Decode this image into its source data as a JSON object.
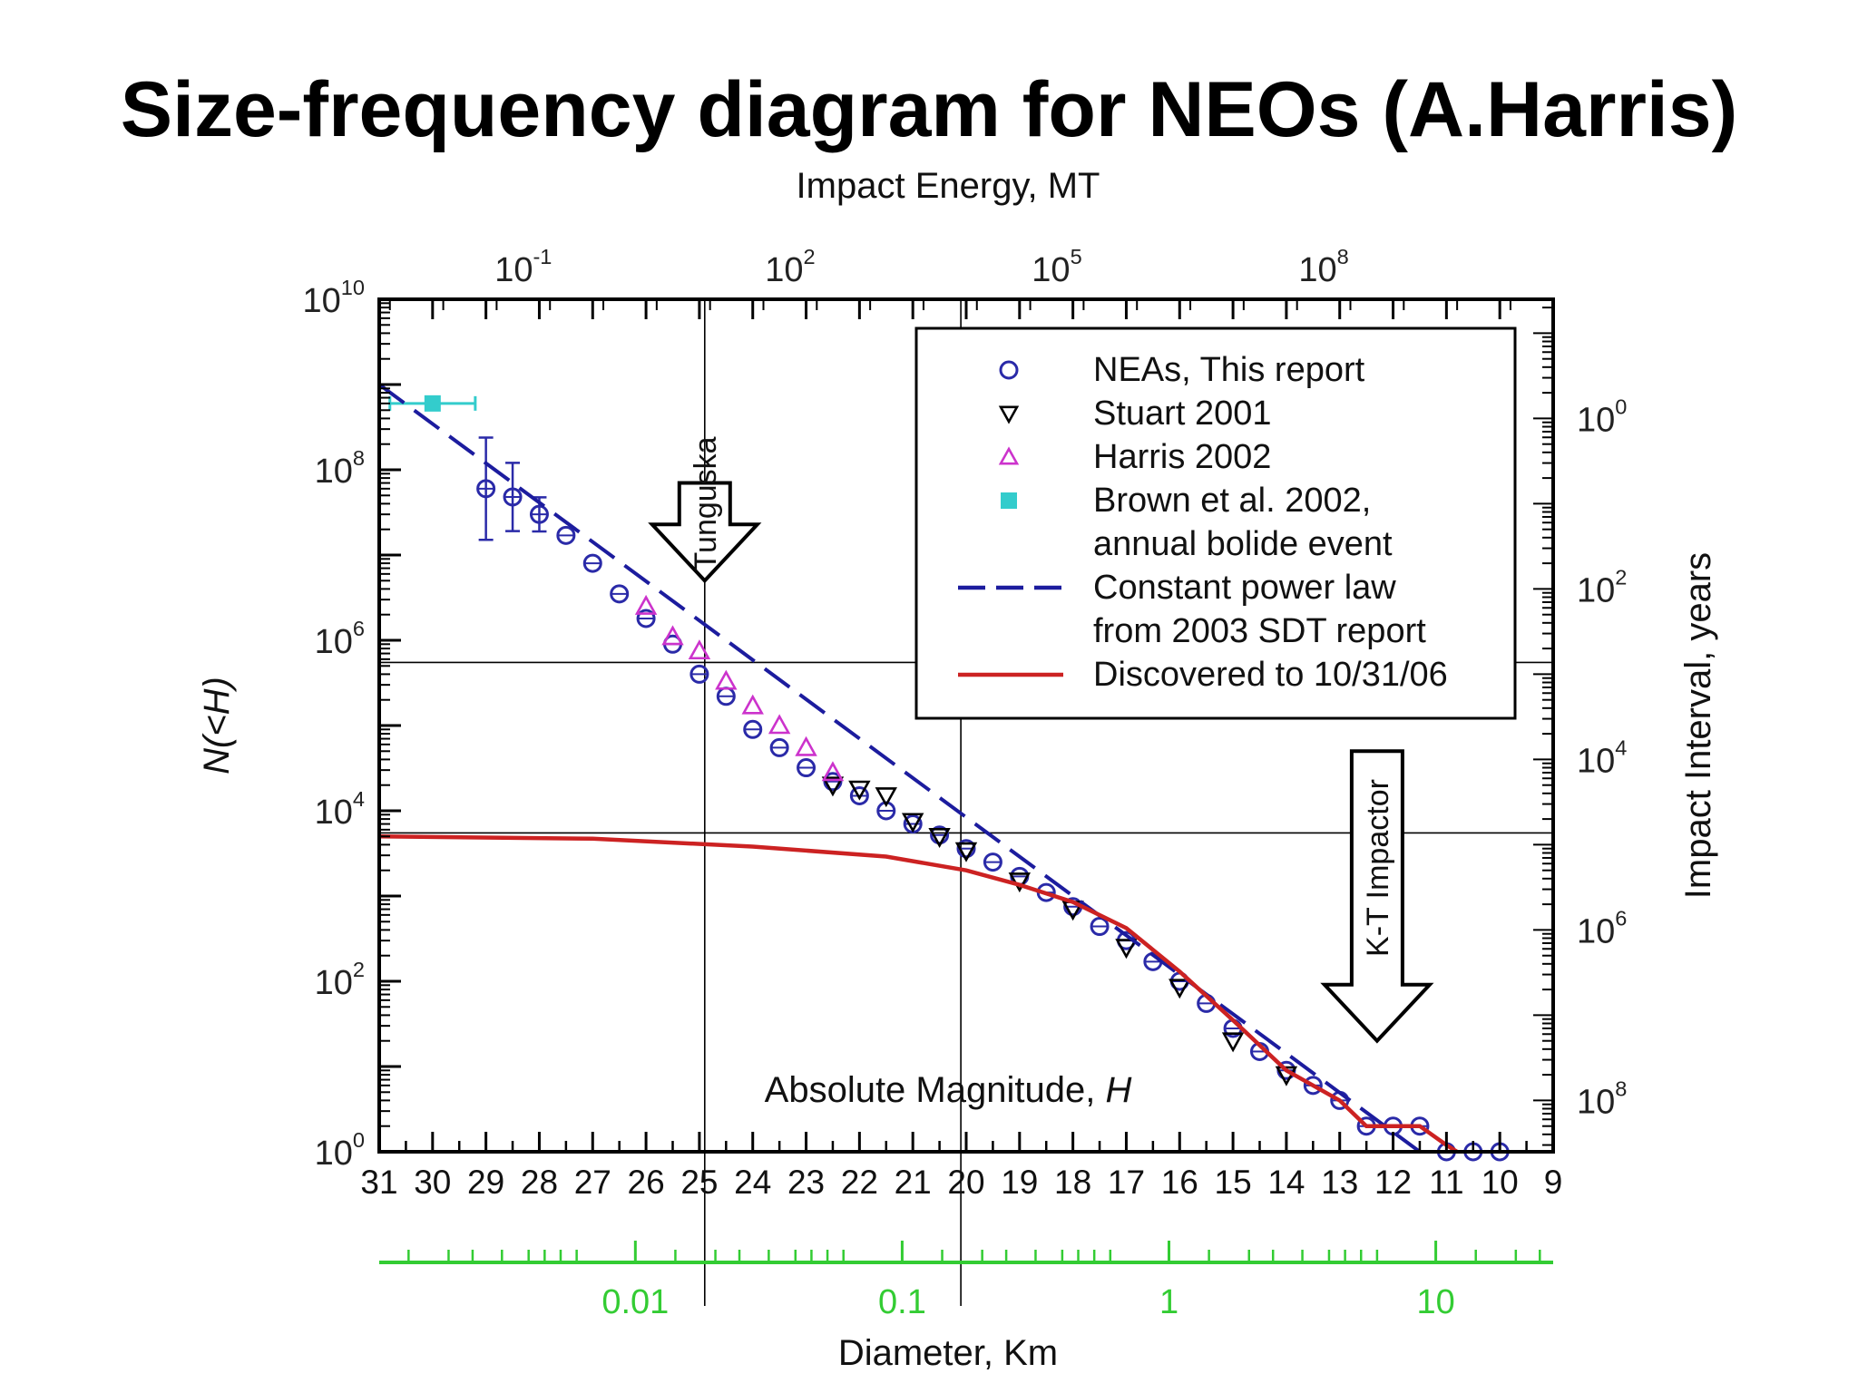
{
  "title": "Size-frequency diagram for NEOs (A.Harris)",
  "chart_data": {
    "type": "scatter",
    "x_axis": {
      "label": "Absolute Magnitude, H",
      "label_var": "H",
      "range": [
        31,
        9
      ],
      "reversed": true,
      "ticks": [
        "31",
        "30",
        "29",
        "28",
        "27",
        "26",
        "25",
        "24",
        "23",
        "22",
        "21",
        "20",
        "19",
        "18",
        "17",
        "16",
        "15",
        "14",
        "13",
        "12",
        "11",
        "10",
        "9"
      ]
    },
    "y_axis": {
      "label": "N(<H)",
      "scale": "log",
      "range": [
        1,
        10000000000
      ],
      "ticks": [
        {
          "value": 1,
          "base": "10",
          "exp": "0"
        },
        {
          "value": 100,
          "base": "10",
          "exp": "2"
        },
        {
          "value": 10000,
          "base": "10",
          "exp": "4"
        },
        {
          "value": 1000000,
          "base": "10",
          "exp": "6"
        },
        {
          "value": 100000000,
          "base": "10",
          "exp": "8"
        },
        {
          "value": 10000000000,
          "base": "10",
          "exp": "10"
        }
      ]
    },
    "top_axis": {
      "label": "Impact Energy, MT",
      "scale": "log",
      "ticks": [
        {
          "H": 28.3,
          "base": "10",
          "exp": "-1"
        },
        {
          "H": 23.3,
          "base": "10",
          "exp": "2"
        },
        {
          "H": 18.3,
          "base": "10",
          "exp": "5"
        },
        {
          "H": 13.3,
          "base": "10",
          "exp": "8"
        }
      ]
    },
    "right_axis": {
      "label": "Impact Interval, years",
      "scale": "log",
      "ticks": [
        {
          "y": 400000000,
          "base": "10",
          "exp": "0"
        },
        {
          "y": 4000000,
          "base": "10",
          "exp": "2"
        },
        {
          "y": 40000,
          "base": "10",
          "exp": "4"
        },
        {
          "y": 400,
          "base": "10",
          "exp": "6"
        },
        {
          "y": 4,
          "base": "10",
          "exp": "8"
        }
      ]
    },
    "diameter_axis": {
      "label": "Diameter, Km",
      "color": "#33cc33",
      "scale": "log",
      "ticks": [
        {
          "H": 26.2,
          "label": "0.01"
        },
        {
          "H": 21.2,
          "label": "0.1"
        },
        {
          "H": 16.2,
          "label": "1"
        },
        {
          "H": 11.2,
          "label": "10"
        }
      ]
    },
    "reference_lines": {
      "vertical_H": [
        24.9,
        20.1
      ],
      "horizontal_N": [
        550000,
        5500
      ]
    },
    "annotations": [
      {
        "text": "Tunguska",
        "H": 24.9,
        "N_top": 70000000,
        "N_bottom": 5000000
      },
      {
        "text": "K-T Impactor",
        "H": 12.3,
        "N_top": 50000,
        "N_bottom": 20
      }
    ],
    "legend": {
      "position": "top-right"
    },
    "series": [
      {
        "name": "NEAs, This report",
        "marker": "circle",
        "color": "#2a2aa8",
        "points": [
          [
            29.0,
            60000000
          ],
          [
            28.5,
            48000000
          ],
          [
            28.0,
            30000000
          ],
          [
            27.5,
            17000000
          ],
          [
            27.0,
            8000000
          ],
          [
            26.5,
            3500000
          ],
          [
            26.0,
            1800000
          ],
          [
            25.5,
            900000
          ],
          [
            25.0,
            400000
          ],
          [
            24.5,
            220000
          ],
          [
            24.0,
            90000
          ],
          [
            23.5,
            55000
          ],
          [
            23.0,
            32000
          ],
          [
            22.5,
            22000
          ],
          [
            22.0,
            15000
          ],
          [
            21.5,
            10000
          ],
          [
            21.0,
            7000
          ],
          [
            20.5,
            5200
          ],
          [
            20.0,
            3600
          ],
          [
            19.5,
            2500
          ],
          [
            19.0,
            1700
          ],
          [
            18.5,
            1100
          ],
          [
            18.0,
            750
          ],
          [
            17.5,
            440
          ],
          [
            17.0,
            300
          ],
          [
            16.5,
            170
          ],
          [
            16.0,
            100
          ],
          [
            15.5,
            55
          ],
          [
            15.0,
            28
          ],
          [
            14.5,
            15
          ],
          [
            14.0,
            9
          ],
          [
            13.5,
            6
          ],
          [
            13.0,
            4
          ],
          [
            12.5,
            2
          ],
          [
            12.0,
            2
          ],
          [
            11.5,
            2
          ],
          [
            11.0,
            1
          ],
          [
            10.5,
            1
          ],
          [
            10.0,
            1
          ]
        ],
        "err": [
          [
            29.0,
            0.6
          ],
          [
            28.5,
            0.4
          ],
          [
            28.0,
            0.2
          ]
        ]
      },
      {
        "name": "Stuart 2001",
        "marker": "triangle-down",
        "color": "#000000",
        "points": [
          [
            22.5,
            20000
          ],
          [
            22.0,
            18000
          ],
          [
            21.5,
            15000
          ],
          [
            21.0,
            7500
          ],
          [
            20.5,
            5000
          ],
          [
            20.0,
            3400
          ],
          [
            19.0,
            1500
          ],
          [
            18.0,
            700
          ],
          [
            17.0,
            250
          ],
          [
            16.0,
            85
          ],
          [
            15.0,
            20
          ],
          [
            14.0,
            8
          ]
        ]
      },
      {
        "name": "Harris 2002",
        "marker": "triangle-up",
        "color": "#cc33cc",
        "points": [
          [
            26.0,
            2500000
          ],
          [
            25.5,
            1100000
          ],
          [
            25.0,
            750000
          ],
          [
            24.5,
            330000
          ],
          [
            24.0,
            170000
          ],
          [
            23.5,
            100000
          ],
          [
            23.0,
            55000
          ],
          [
            22.5,
            28000
          ]
        ]
      },
      {
        "name": "Brown et al. 2002, annual bolide event",
        "marker": "square",
        "color": "#33cccc",
        "points": [
          [
            30.0,
            600000000
          ]
        ],
        "xerr": [
          [
            30.8,
            29.2
          ]
        ]
      },
      {
        "name": "Constant power law from 2003 SDT report",
        "line": "dashed",
        "color": "#1c1c9e",
        "points": [
          [
            31.0,
            1000000000
          ],
          [
            11.5,
            1
          ]
        ]
      },
      {
        "name": "Discovered to 10/31/06",
        "line": "solid",
        "color": "#cc2222",
        "points": [
          [
            31.0,
            5000
          ],
          [
            27.0,
            4700
          ],
          [
            24.0,
            3800
          ],
          [
            21.5,
            2900
          ],
          [
            20.0,
            2000
          ],
          [
            19.0,
            1350
          ],
          [
            18.0,
            850
          ],
          [
            17.0,
            420
          ],
          [
            16.0,
            130
          ],
          [
            15.0,
            35
          ],
          [
            14.0,
            9
          ],
          [
            13.0,
            4
          ],
          [
            12.5,
            2
          ],
          [
            12.0,
            2
          ],
          [
            11.5,
            2
          ],
          [
            11.0,
            1.2
          ],
          [
            10.8,
            1
          ]
        ]
      }
    ]
  }
}
